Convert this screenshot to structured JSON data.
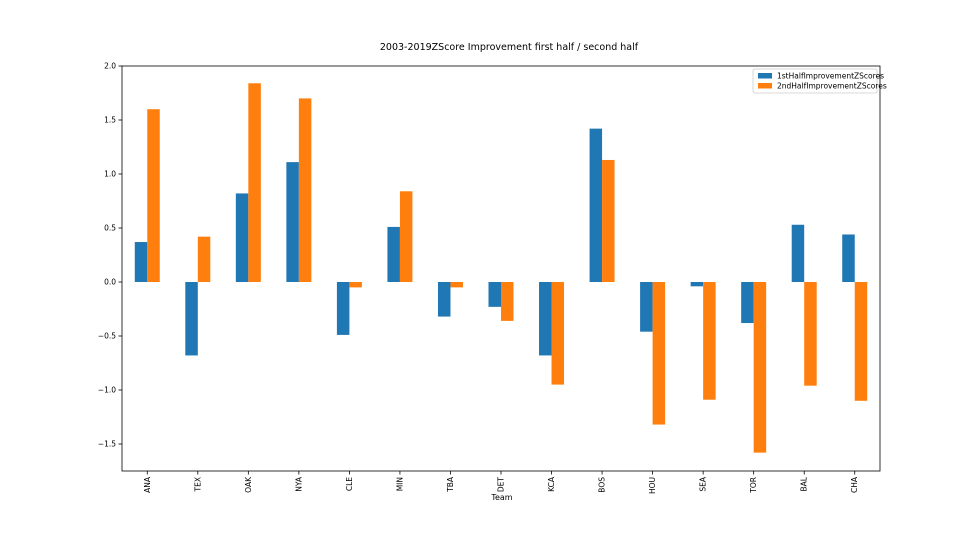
{
  "chart_data": {
    "type": "bar",
    "title": "2003-2019ZScore Improvement first half / second half",
    "xlabel": "Team",
    "ylabel": "",
    "ylim": [
      -1.75,
      2.0
    ],
    "yticks": [
      -1.5,
      -1.0,
      -0.5,
      0.0,
      0.5,
      1.0,
      1.5,
      2.0
    ],
    "ytick_labels": [
      "−1.5",
      "−1.0",
      "−0.5",
      "0.0",
      "0.5",
      "1.0",
      "1.5",
      "2.0"
    ],
    "categories": [
      "ANA",
      "TEX",
      "OAK",
      "NYA",
      "CLE",
      "MIN",
      "TBA",
      "DET",
      "KCA",
      "BOS",
      "HOU",
      "SEA",
      "TOR",
      "BAL",
      "CHA"
    ],
    "series": [
      {
        "name": "1stHalfImprovementZScores",
        "color": "#1f77b4",
        "values": [
          0.37,
          -0.68,
          0.82,
          1.11,
          -0.49,
          0.51,
          -0.32,
          -0.23,
          -0.68,
          1.42,
          -0.46,
          -0.04,
          -0.38,
          0.53,
          0.44
        ]
      },
      {
        "name": "2ndHalfImprovementZScores",
        "color": "#ff7f0e",
        "values": [
          1.6,
          0.42,
          1.84,
          1.7,
          -0.05,
          0.84,
          -0.05,
          -0.36,
          -0.95,
          1.13,
          -1.32,
          -1.09,
          -1.58,
          -0.96,
          -1.1
        ]
      }
    ],
    "legend_position": "top-right",
    "grid": false
  }
}
